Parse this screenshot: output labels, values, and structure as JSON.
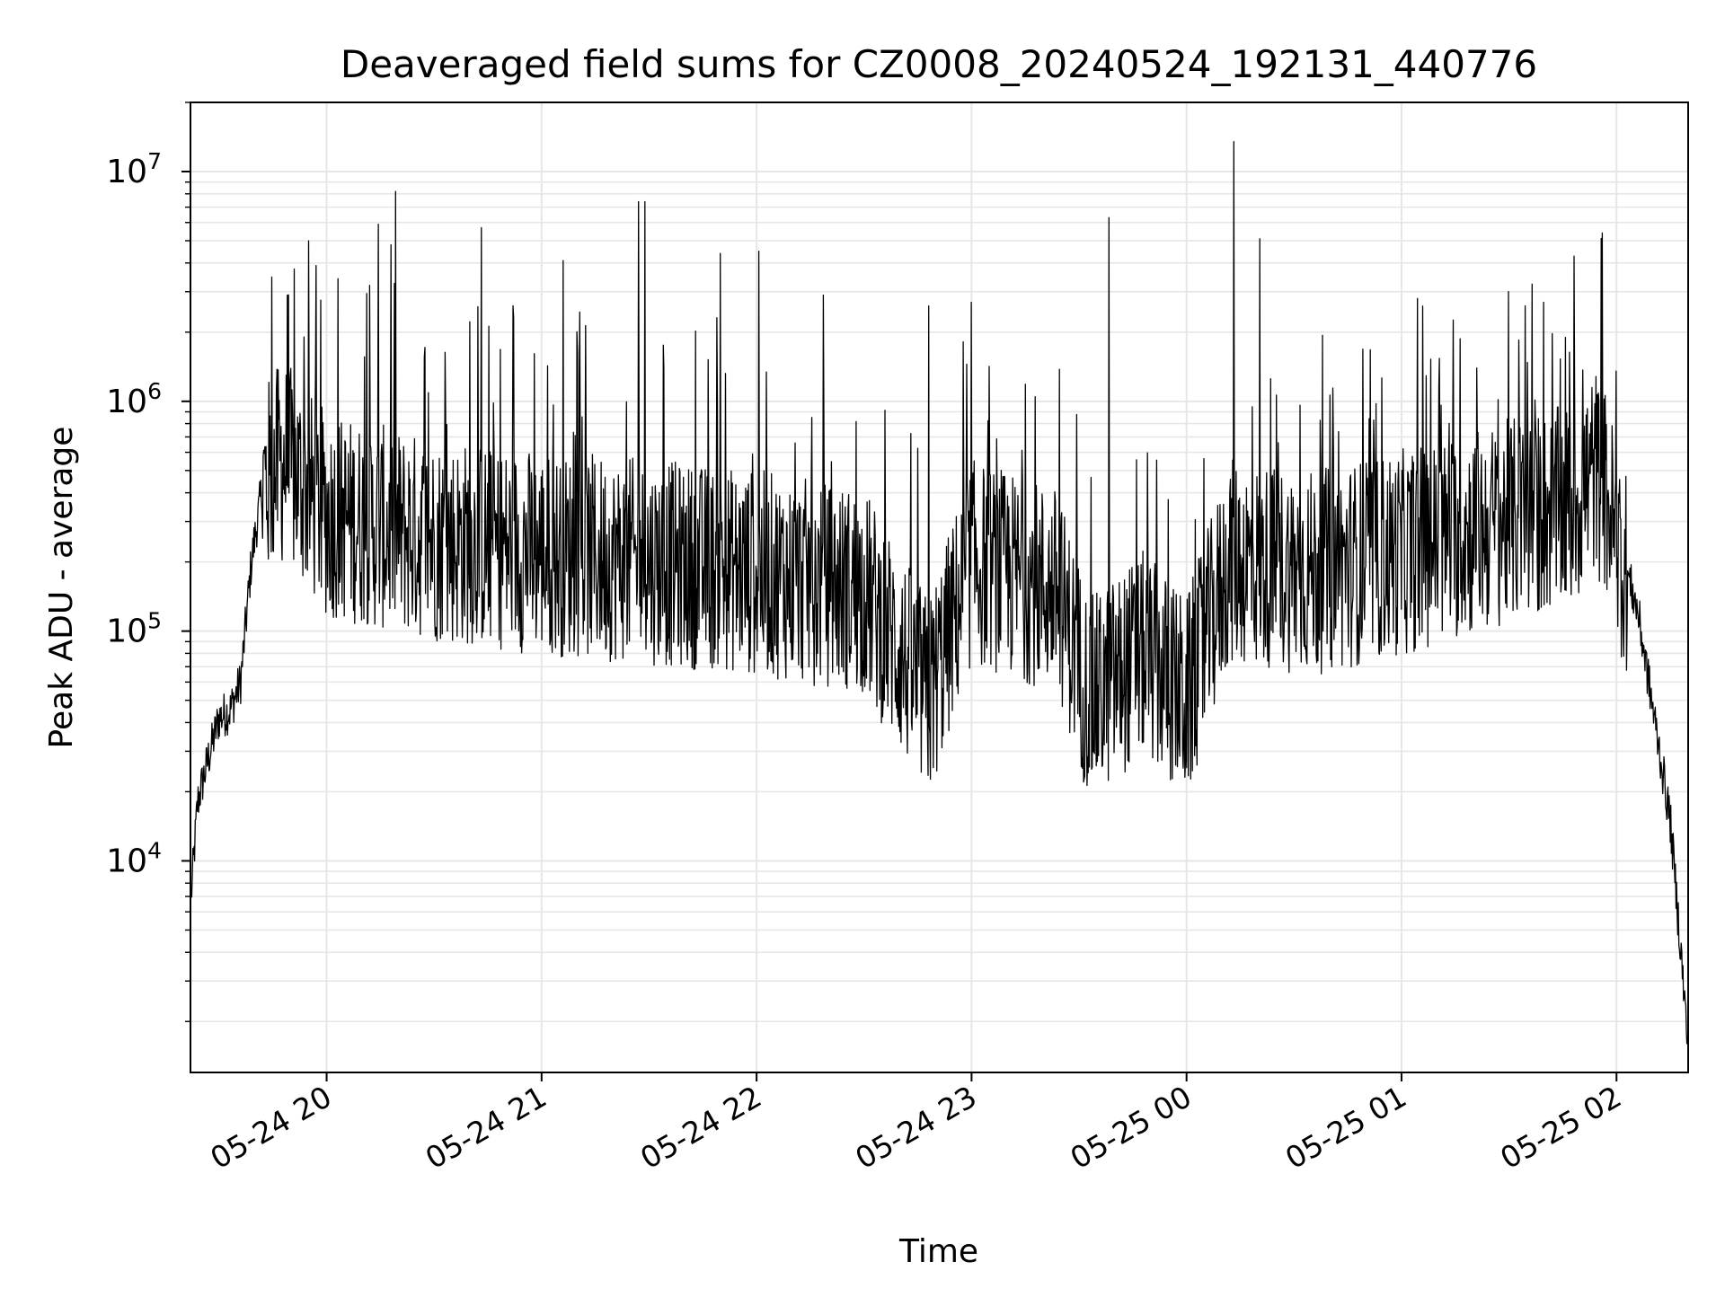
{
  "chart_data": {
    "type": "line",
    "title": "Deaveraged field sums for CZ0008_20240524_192131_440776",
    "xlabel": "Time",
    "ylabel": "Peak ADU - average",
    "x_ticks": [
      "05-24 20",
      "05-24 21",
      "05-24 22",
      "05-24 23",
      "05-25 00",
      "05-25 01",
      "05-25 02"
    ],
    "x_tick_hours": [
      20,
      21,
      22,
      23,
      24,
      25,
      26
    ],
    "xlim_hours": [
      19.3667,
      26.3333
    ],
    "y_scale": "log",
    "ylim": [
      1200,
      20000000
    ],
    "y_ticks": [
      {
        "value": 10000,
        "base": "10",
        "exp": "4"
      },
      {
        "value": 100000,
        "base": "10",
        "exp": "5"
      },
      {
        "value": 1000000,
        "base": "10",
        "exp": "6"
      },
      {
        "value": 10000000,
        "base": "10",
        "exp": "7"
      }
    ],
    "grid": true,
    "colors": {
      "line": "#000000",
      "grid": "#e6e6e6",
      "axes": "#000000"
    },
    "series": [
      {
        "envelope": [
          [
            19.37,
            7000
          ],
          [
            19.4,
            18000
          ],
          [
            19.45,
            28000
          ],
          [
            19.5,
            42000
          ],
          [
            19.55,
            45000
          ],
          [
            19.6,
            60000
          ],
          [
            19.65,
            200000
          ],
          [
            19.7,
            420000
          ],
          [
            19.8,
            550000
          ],
          [
            20.0,
            320000
          ],
          [
            20.5,
            250000
          ],
          [
            21.0,
            220000
          ],
          [
            21.5,
            200000
          ],
          [
            22.0,
            180000
          ],
          [
            22.5,
            150000
          ],
          [
            22.8,
            50000
          ],
          [
            23.0,
            200000
          ],
          [
            23.4,
            150000
          ],
          [
            23.55,
            50000
          ],
          [
            23.8,
            80000
          ],
          [
            24.0,
            50000
          ],
          [
            24.2,
            200000
          ],
          [
            24.6,
            180000
          ],
          [
            25.0,
            220000
          ],
          [
            25.5,
            300000
          ],
          [
            25.8,
            350000
          ],
          [
            25.9,
            500000
          ],
          [
            25.95,
            400000
          ],
          [
            26.0,
            250000
          ],
          [
            26.05,
            180000
          ],
          [
            26.1,
            120000
          ],
          [
            26.15,
            60000
          ],
          [
            26.2,
            30000
          ],
          [
            26.25,
            15000
          ],
          [
            26.3,
            4000
          ],
          [
            26.333,
            1500
          ]
        ],
        "spikes": [
          [
            19.95,
            3900000
          ],
          [
            20.2,
            3200000
          ],
          [
            20.24,
            5900000
          ],
          [
            20.3,
            4800000
          ],
          [
            20.32,
            8200000
          ],
          [
            20.72,
            5700000
          ],
          [
            21.1,
            4100000
          ],
          [
            21.45,
            7400000
          ],
          [
            21.48,
            7400000
          ],
          [
            21.83,
            4400000
          ],
          [
            22.01,
            4500000
          ],
          [
            22.31,
            2900000
          ],
          [
            22.8,
            2600000
          ],
          [
            23.0,
            2700000
          ],
          [
            23.64,
            6300000
          ],
          [
            24.22,
            13500000
          ],
          [
            24.34,
            5100000
          ],
          [
            25.66,
            2700000
          ]
        ]
      }
    ]
  }
}
